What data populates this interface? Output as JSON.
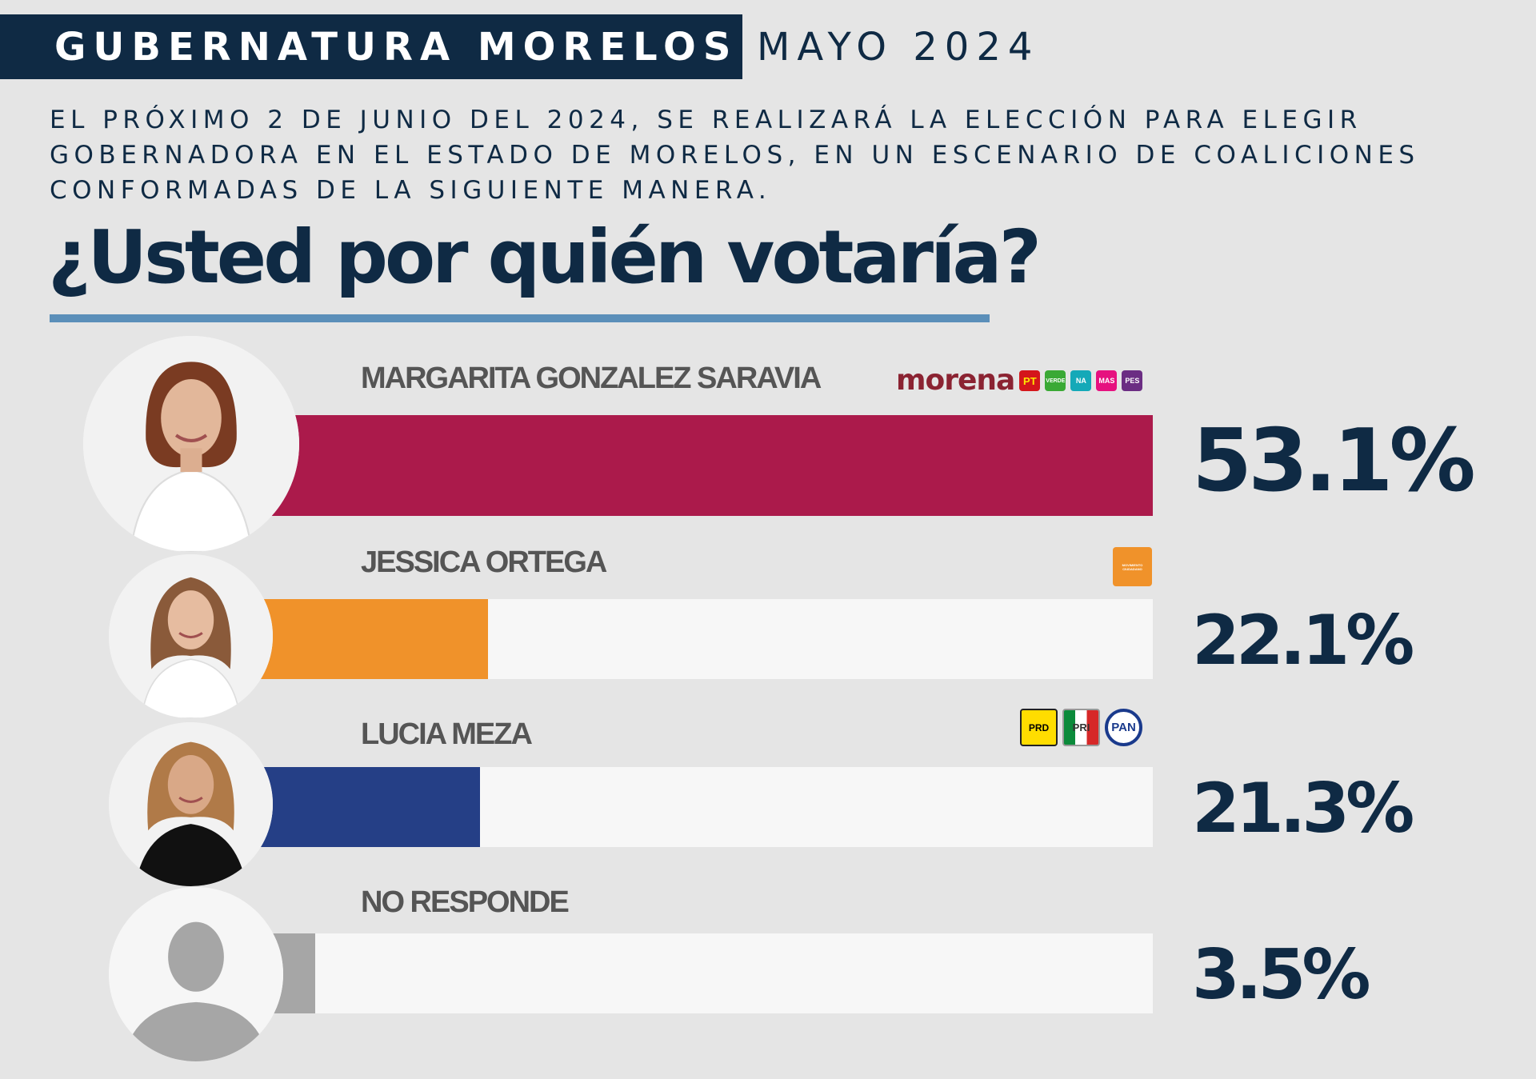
{
  "header": {
    "title": "GUBERNATURA MORELOS",
    "date": "MAYO 2024"
  },
  "intro": {
    "lines": [
      "EL PRÓXIMO 2 DE JUNIO DEL 2024, SE REALIZARÁ LA ELECCIÓN PARA ELEGIR",
      "GOBERNADORA EN EL ESTADO DE MORELOS, EN UN ESCENARIO DE COALICIONES",
      "CONFORMADAS DE LA SIGUIENTE MANERA."
    ]
  },
  "question": "¿Usted por quién votaría?",
  "colors": {
    "navy": "#0f2a44",
    "rule": "#5b8fb9",
    "morena": "#ab1a4b",
    "mc": "#f0922a",
    "prian": "#253f86",
    "none": "#a6a6a6"
  },
  "party_logos": {
    "morena_coalition": [
      "morena",
      "PT",
      "VERDE",
      "NA",
      "MAS",
      "PES"
    ],
    "mc": [
      "MOVIMIENTO CIUDADANO"
    ],
    "prian": [
      "PRD",
      "PRI",
      "PAN"
    ]
  },
  "chart_data": {
    "type": "bar",
    "orientation": "horizontal",
    "title": "¿Usted por quién votaría?",
    "xlim": [
      0,
      60
    ],
    "categories": [
      "MARGARITA GONZALEZ  SARAVIA",
      "JESSICA ORTEGA",
      "LUCIA MEZA",
      "NO RESPONDE"
    ],
    "values": [
      53.1,
      22.1,
      21.3,
      3.5
    ],
    "value_labels": [
      "53.1%",
      "22.1%",
      "21.3%",
      "3.5%"
    ],
    "unit": "%",
    "bar_colors": [
      "#ab1a4b",
      "#f0922a",
      "#253f86",
      "#a6a6a6"
    ]
  }
}
